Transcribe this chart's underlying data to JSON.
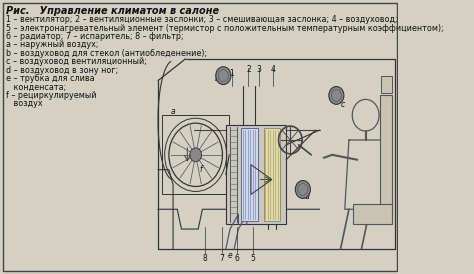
{
  "title": "Рис.   Управление климатом в салоне",
  "legend_lines": [
    "1 – вентилятор; 2 – вентиляционные заслонки; 3 – смешивающая заслонка; 4 – воздуховод;",
    "5 – электронагревательный элемент (термистор с положительным температурным коэффициентом);",
    "6 – радиатор; 7 – испаритель; 8 – фильтр;",
    "a – наружный воздух;",
    "b – воздуховод для стекол (антиобледенение);",
    "c – воздуховод вентиляционный;",
    "d – воздуховод в зону ног;",
    "e – трубка для слива",
    "   конденсата;",
    "f – рециркулируемый",
    "   воздух"
  ],
  "bg_color": "#d4d0c4",
  "border_color": "#444444",
  "text_color": "#111111",
  "title_fontsize": 7.0,
  "legend_fontsize": 5.8
}
